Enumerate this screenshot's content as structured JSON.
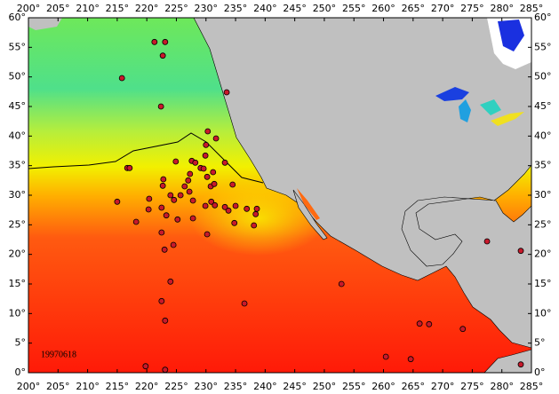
{
  "map": {
    "date_label": "19970618",
    "xlim": [
      200,
      285
    ],
    "ylim": [
      0,
      60
    ],
    "xticks": [
      {
        "value": 200,
        "label": "200°"
      },
      {
        "value": 205,
        "label": "205°"
      },
      {
        "value": 210,
        "label": "210°"
      },
      {
        "value": 215,
        "label": "215°"
      },
      {
        "value": 220,
        "label": "220°"
      },
      {
        "value": 225,
        "label": "225°"
      },
      {
        "value": 230,
        "label": "230°"
      },
      {
        "value": 235,
        "label": "235°"
      },
      {
        "value": 240,
        "label": "240°"
      },
      {
        "value": 245,
        "label": "245°"
      },
      {
        "value": 250,
        "label": "250°"
      },
      {
        "value": 255,
        "label": "255°"
      },
      {
        "value": 260,
        "label": "260°"
      },
      {
        "value": 265,
        "label": "265°"
      },
      {
        "value": 270,
        "label": "270°"
      },
      {
        "value": 275,
        "label": "275°"
      },
      {
        "value": 280,
        "label": "280°"
      },
      {
        "value": 285,
        "label": "285°"
      }
    ],
    "yticks": [
      {
        "value": 0,
        "label": "0°"
      },
      {
        "value": 5,
        "label": "5°"
      },
      {
        "value": 10,
        "label": "10°"
      },
      {
        "value": 15,
        "label": "15°"
      },
      {
        "value": 20,
        "label": "20°"
      },
      {
        "value": 25,
        "label": "25°"
      },
      {
        "value": 30,
        "label": "30°"
      },
      {
        "value": 35,
        "label": "35°"
      },
      {
        "value": 40,
        "label": "40°"
      },
      {
        "value": 45,
        "label": "45°"
      },
      {
        "value": 50,
        "label": "50°"
      },
      {
        "value": 55,
        "label": "55°"
      },
      {
        "value": 60,
        "label": "60°"
      }
    ],
    "point_color": "#c8192b",
    "points": [
      {
        "lon": 221.3,
        "lat": 55.9
      },
      {
        "lon": 223.1,
        "lat": 55.9
      },
      {
        "lon": 222.7,
        "lat": 53.6
      },
      {
        "lon": 215.8,
        "lat": 49.8
      },
      {
        "lon": 222.4,
        "lat": 45.0
      },
      {
        "lon": 233.5,
        "lat": 47.4
      },
      {
        "lon": 230.3,
        "lat": 40.8
      },
      {
        "lon": 231.7,
        "lat": 39.6
      },
      {
        "lon": 230.0,
        "lat": 38.5
      },
      {
        "lon": 229.9,
        "lat": 36.7
      },
      {
        "lon": 227.6,
        "lat": 35.8
      },
      {
        "lon": 228.2,
        "lat": 35.5
      },
      {
        "lon": 233.2,
        "lat": 35.5
      },
      {
        "lon": 216.7,
        "lat": 34.6
      },
      {
        "lon": 217.1,
        "lat": 34.6
      },
      {
        "lon": 224.9,
        "lat": 35.7
      },
      {
        "lon": 227.3,
        "lat": 33.6
      },
      {
        "lon": 229.1,
        "lat": 34.6
      },
      {
        "lon": 229.6,
        "lat": 34.5
      },
      {
        "lon": 227.0,
        "lat": 32.5
      },
      {
        "lon": 230.2,
        "lat": 33.1
      },
      {
        "lon": 231.2,
        "lat": 33.9
      },
      {
        "lon": 222.8,
        "lat": 32.7
      },
      {
        "lon": 226.4,
        "lat": 31.5
      },
      {
        "lon": 222.7,
        "lat": 31.6
      },
      {
        "lon": 230.8,
        "lat": 31.5
      },
      {
        "lon": 234.5,
        "lat": 31.8
      },
      {
        "lon": 231.4,
        "lat": 31.9
      },
      {
        "lon": 225.7,
        "lat": 30.0
      },
      {
        "lon": 227.2,
        "lat": 30.6
      },
      {
        "lon": 224.0,
        "lat": 30.0
      },
      {
        "lon": 224.6,
        "lat": 29.2
      },
      {
        "lon": 215.0,
        "lat": 28.9
      },
      {
        "lon": 220.4,
        "lat": 29.4
      },
      {
        "lon": 230.9,
        "lat": 28.9
      },
      {
        "lon": 229.9,
        "lat": 28.2
      },
      {
        "lon": 231.5,
        "lat": 28.3
      },
      {
        "lon": 222.5,
        "lat": 27.9
      },
      {
        "lon": 233.8,
        "lat": 27.4
      },
      {
        "lon": 233.2,
        "lat": 28.0
      },
      {
        "lon": 235.0,
        "lat": 28.2
      },
      {
        "lon": 227.8,
        "lat": 29.1
      },
      {
        "lon": 220.3,
        "lat": 27.6
      },
      {
        "lon": 223.3,
        "lat": 26.6
      },
      {
        "lon": 236.9,
        "lat": 27.7
      },
      {
        "lon": 238.6,
        "lat": 27.7
      },
      {
        "lon": 238.4,
        "lat": 26.8
      },
      {
        "lon": 227.8,
        "lat": 26.1
      },
      {
        "lon": 225.2,
        "lat": 25.9
      },
      {
        "lon": 218.2,
        "lat": 25.5
      },
      {
        "lon": 222.5,
        "lat": 23.7
      },
      {
        "lon": 234.8,
        "lat": 25.3
      },
      {
        "lon": 238.1,
        "lat": 24.9
      },
      {
        "lon": 230.2,
        "lat": 23.4
      },
      {
        "lon": 224.5,
        "lat": 21.6
      },
      {
        "lon": 223.0,
        "lat": 20.8
      },
      {
        "lon": 224.0,
        "lat": 15.4
      },
      {
        "lon": 222.5,
        "lat": 12.1
      },
      {
        "lon": 223.1,
        "lat": 8.8
      },
      {
        "lon": 236.5,
        "lat": 11.7
      },
      {
        "lon": 252.9,
        "lat": 15.0
      },
      {
        "lon": 277.5,
        "lat": 22.2
      },
      {
        "lon": 283.2,
        "lat": 20.6
      },
      {
        "lon": 260.4,
        "lat": 2.7
      },
      {
        "lon": 264.6,
        "lat": 2.3
      },
      {
        "lon": 266.1,
        "lat": 8.3
      },
      {
        "lon": 267.7,
        "lat": 8.2
      },
      {
        "lon": 273.4,
        "lat": 7.4
      },
      {
        "lon": 219.8,
        "lat": 1.1
      },
      {
        "lon": 223.1,
        "lat": 0.5
      },
      {
        "lon": 283.2,
        "lat": 1.4
      }
    ]
  }
}
